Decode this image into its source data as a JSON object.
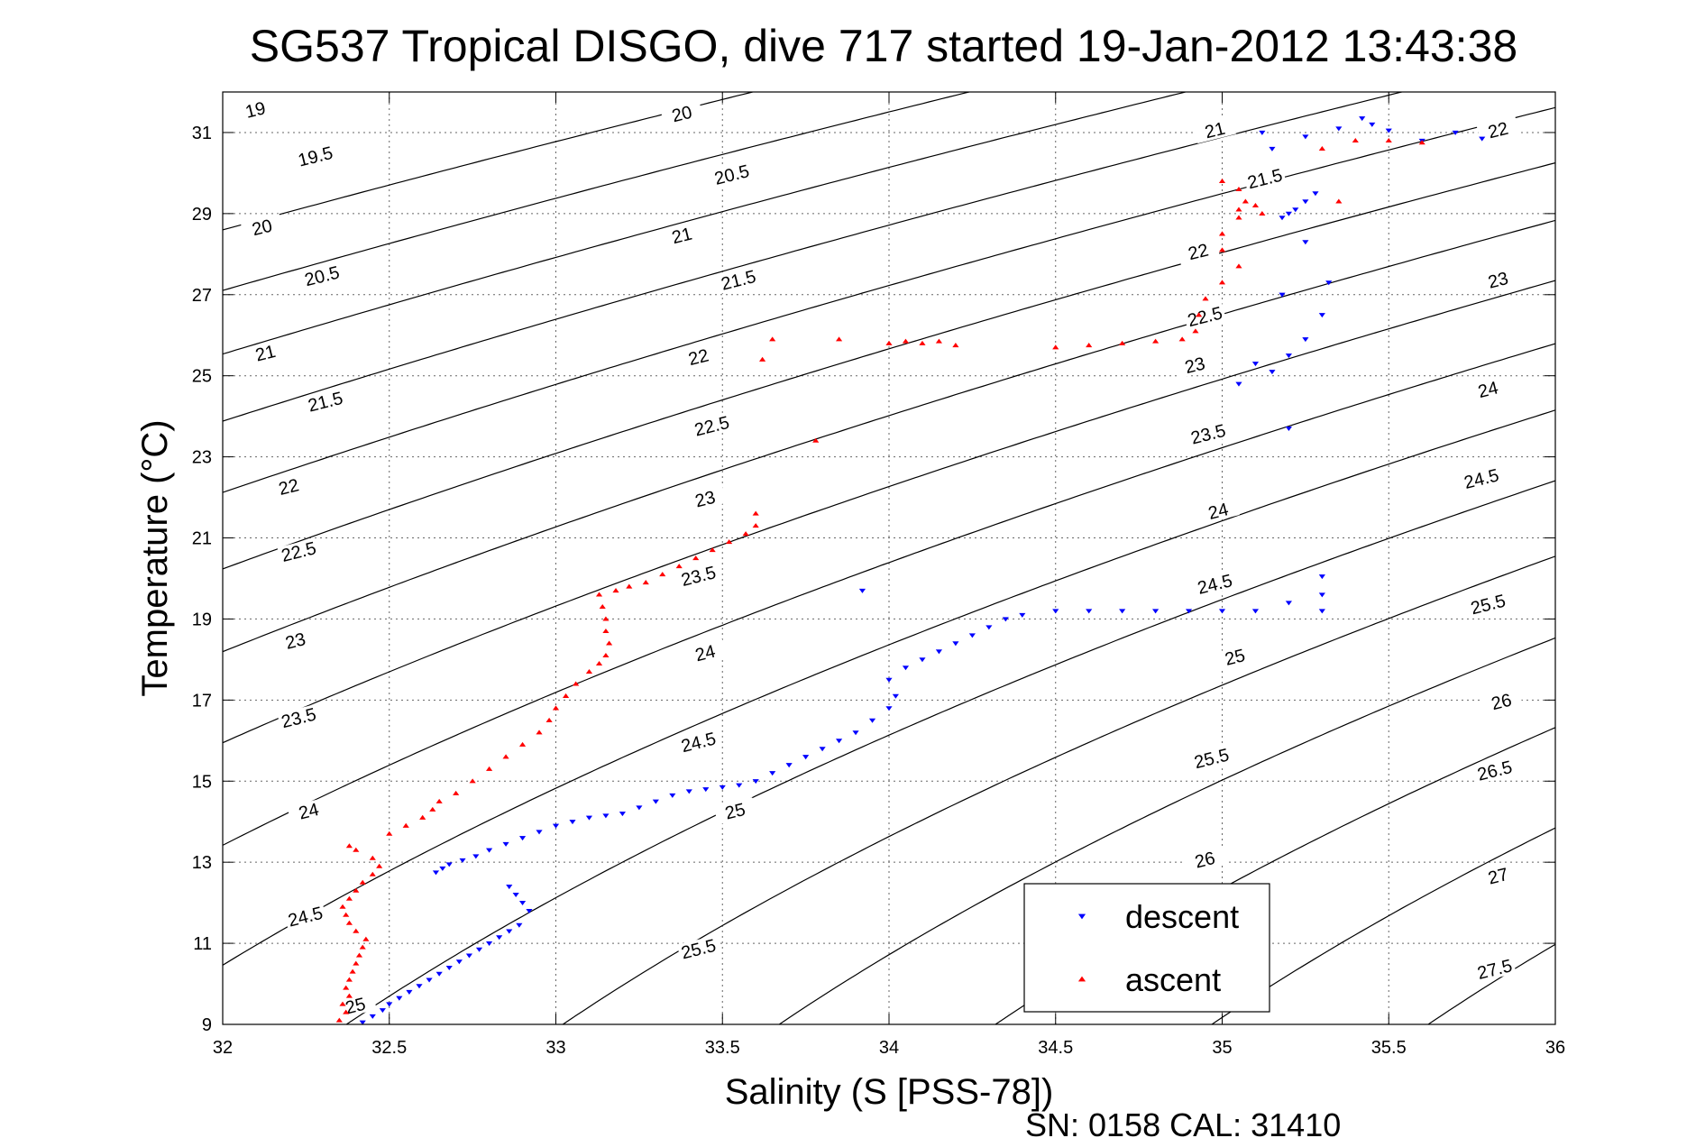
{
  "chart_data": {
    "type": "scatter",
    "title": "SG537 Tropical DISGO, dive 717 started 19-Jan-2012 13:43:38",
    "xlabel": "Salinity (S [PSS-78])",
    "ylabel": "Temperature (°C)",
    "xlim": [
      32,
      36
    ],
    "ylim": [
      9,
      32
    ],
    "xticks": [
      32,
      32.5,
      33,
      33.5,
      34,
      34.5,
      35,
      35.5,
      36
    ],
    "xtick_labels": [
      "32",
      "32.5",
      "33",
      "33.5",
      "34",
      "34.5",
      "35",
      "35.5",
      "36"
    ],
    "yticks": [
      9,
      11,
      13,
      15,
      17,
      19,
      21,
      23,
      25,
      27,
      29,
      31
    ],
    "ytick_labels": [
      "9",
      "11",
      "13",
      "15",
      "17",
      "19",
      "21",
      "23",
      "25",
      "27",
      "29",
      "31"
    ],
    "grid": true,
    "legend_position": "bottom-right",
    "footer": "SN: 0158  CAL: 31410",
    "isopycnals": {
      "levels": [
        19,
        19.5,
        20,
        20.5,
        21,
        21.5,
        22,
        22.5,
        23,
        23.5,
        24,
        24.5,
        25,
        25.5,
        26,
        26.5,
        27,
        27.5
      ],
      "labels": [
        {
          "text": "19",
          "s": 32.1,
          "t": 31.5
        },
        {
          "text": "19.5",
          "s": 32.28,
          "t": 30.35
        },
        {
          "text": "20",
          "s": 32.12,
          "t": 28.6
        },
        {
          "text": "20.5",
          "s": 32.3,
          "t": 27.4
        },
        {
          "text": "21",
          "s": 32.13,
          "t": 25.5
        },
        {
          "text": "21.5",
          "s": 32.31,
          "t": 24.3
        },
        {
          "text": "22",
          "s": 32.2,
          "t": 22.2
        },
        {
          "text": "22.5",
          "s": 32.23,
          "t": 20.6
        },
        {
          "text": "23",
          "s": 32.22,
          "t": 18.4
        },
        {
          "text": "23.5",
          "s": 32.23,
          "t": 16.5
        },
        {
          "text": "24",
          "s": 32.26,
          "t": 14.2
        },
        {
          "text": "24.5",
          "s": 32.25,
          "t": 11.6
        },
        {
          "text": "25",
          "s": 32.4,
          "t": 9.4
        },
        {
          "text": "20",
          "s": 33.38,
          "t": 31.4
        },
        {
          "text": "20.5",
          "s": 33.53,
          "t": 29.9
        },
        {
          "text": "21",
          "s": 33.38,
          "t": 28.4
        },
        {
          "text": "21.5",
          "s": 33.55,
          "t": 27.3
        },
        {
          "text": "22",
          "s": 33.43,
          "t": 25.4
        },
        {
          "text": "22.5",
          "s": 33.47,
          "t": 23.7
        },
        {
          "text": "23",
          "s": 33.45,
          "t": 21.9
        },
        {
          "text": "23.5",
          "s": 33.43,
          "t": 20.0
        },
        {
          "text": "24",
          "s": 33.45,
          "t": 18.1
        },
        {
          "text": "24.5",
          "s": 33.43,
          "t": 15.9
        },
        {
          "text": "25",
          "s": 33.54,
          "t": 14.2
        },
        {
          "text": "25.5",
          "s": 33.43,
          "t": 10.8
        },
        {
          "text": "21",
          "s": 34.98,
          "t": 31.0
        },
        {
          "text": "21.5",
          "s": 35.13,
          "t": 29.8
        },
        {
          "text": "22",
          "s": 34.93,
          "t": 28.0
        },
        {
          "text": "22.5",
          "s": 34.95,
          "t": 26.4
        },
        {
          "text": "23",
          "s": 34.92,
          "t": 25.2
        },
        {
          "text": "23.5",
          "s": 34.96,
          "t": 23.5
        },
        {
          "text": "24",
          "s": 34.99,
          "t": 21.6
        },
        {
          "text": "24.5",
          "s": 34.98,
          "t": 19.8
        },
        {
          "text": "25",
          "s": 35.04,
          "t": 18.0
        },
        {
          "text": "25.5",
          "s": 34.97,
          "t": 15.5
        },
        {
          "text": "26",
          "s": 34.95,
          "t": 13.0
        },
        {
          "text": "22",
          "s": 35.83,
          "t": 31.0
        },
        {
          "text": "23",
          "s": 35.83,
          "t": 27.3
        },
        {
          "text": "24",
          "s": 35.8,
          "t": 24.6
        },
        {
          "text": "24.5",
          "s": 35.78,
          "t": 22.4
        },
        {
          "text": "25.5",
          "s": 35.8,
          "t": 19.3
        },
        {
          "text": "26",
          "s": 35.84,
          "t": 16.9
        },
        {
          "text": "26.5",
          "s": 35.82,
          "t": 15.2
        },
        {
          "text": "27",
          "s": 35.83,
          "t": 12.6
        },
        {
          "text": "27.5",
          "s": 35.82,
          "t": 10.3
        }
      ]
    },
    "series": [
      {
        "name": "descent",
        "marker": "triangle-down",
        "color": "#0000ff",
        "points": [
          [
            32.42,
            9.05
          ],
          [
            32.45,
            9.2
          ],
          [
            32.48,
            9.35
          ],
          [
            32.5,
            9.5
          ],
          [
            32.53,
            9.65
          ],
          [
            32.56,
            9.8
          ],
          [
            32.59,
            9.95
          ],
          [
            32.62,
            10.1
          ],
          [
            32.65,
            10.25
          ],
          [
            32.68,
            10.4
          ],
          [
            32.71,
            10.55
          ],
          [
            32.74,
            10.7
          ],
          [
            32.77,
            10.85
          ],
          [
            32.8,
            11.0
          ],
          [
            32.83,
            11.15
          ],
          [
            32.86,
            11.3
          ],
          [
            32.89,
            11.45
          ],
          [
            32.92,
            11.8
          ],
          [
            32.9,
            12.0
          ],
          [
            32.88,
            12.2
          ],
          [
            32.86,
            12.4
          ],
          [
            32.64,
            12.75
          ],
          [
            32.66,
            12.85
          ],
          [
            32.68,
            12.95
          ],
          [
            32.72,
            13.05
          ],
          [
            32.76,
            13.15
          ],
          [
            32.8,
            13.3
          ],
          [
            32.85,
            13.45
          ],
          [
            32.9,
            13.6
          ],
          [
            32.95,
            13.75
          ],
          [
            33.0,
            13.9
          ],
          [
            33.05,
            14.0
          ],
          [
            33.1,
            14.1
          ],
          [
            33.15,
            14.15
          ],
          [
            33.2,
            14.2
          ],
          [
            33.25,
            14.35
          ],
          [
            33.3,
            14.5
          ],
          [
            33.35,
            14.65
          ],
          [
            33.4,
            14.75
          ],
          [
            33.45,
            14.8
          ],
          [
            33.5,
            14.85
          ],
          [
            33.55,
            14.9
          ],
          [
            33.6,
            15.0
          ],
          [
            33.65,
            15.2
          ],
          [
            33.7,
            15.4
          ],
          [
            33.75,
            15.6
          ],
          [
            33.8,
            15.8
          ],
          [
            33.85,
            16.0
          ],
          [
            33.9,
            16.2
          ],
          [
            33.95,
            16.5
          ],
          [
            34.0,
            16.8
          ],
          [
            34.02,
            17.1
          ],
          [
            34.0,
            17.5
          ],
          [
            34.05,
            17.8
          ],
          [
            34.1,
            18.0
          ],
          [
            34.15,
            18.2
          ],
          [
            34.2,
            18.4
          ],
          [
            34.25,
            18.6
          ],
          [
            34.3,
            18.8
          ],
          [
            34.35,
            19.0
          ],
          [
            34.4,
            19.1
          ],
          [
            34.5,
            19.2
          ],
          [
            34.6,
            19.2
          ],
          [
            34.7,
            19.2
          ],
          [
            34.8,
            19.2
          ],
          [
            34.9,
            19.2
          ],
          [
            35.0,
            19.2
          ],
          [
            35.1,
            19.2
          ],
          [
            35.2,
            19.4
          ],
          [
            35.3,
            19.6
          ],
          [
            35.3,
            20.05
          ],
          [
            35.3,
            19.2
          ],
          [
            33.92,
            19.7
          ],
          [
            35.05,
            24.8
          ],
          [
            35.15,
            25.1
          ],
          [
            35.2,
            25.5
          ],
          [
            35.25,
            25.9
          ],
          [
            35.3,
            26.5
          ],
          [
            35.2,
            23.7
          ],
          [
            35.1,
            25.3
          ],
          [
            35.18,
            27.0
          ],
          [
            35.32,
            27.3
          ],
          [
            35.25,
            28.3
          ],
          [
            35.18,
            28.9
          ],
          [
            35.2,
            29.0
          ],
          [
            35.22,
            29.1
          ],
          [
            35.25,
            29.3
          ],
          [
            35.28,
            29.5
          ],
          [
            35.15,
            30.6
          ],
          [
            35.25,
            30.9
          ],
          [
            35.35,
            31.1
          ],
          [
            35.42,
            31.35
          ],
          [
            35.45,
            31.2
          ],
          [
            35.5,
            31.05
          ],
          [
            35.6,
            30.8
          ],
          [
            35.7,
            31.0
          ],
          [
            35.78,
            30.85
          ],
          [
            35.12,
            31.0
          ]
        ]
      },
      {
        "name": "ascent",
        "marker": "triangle-up",
        "color": "#ff0000",
        "points": [
          [
            32.35,
            9.1
          ],
          [
            32.37,
            9.3
          ],
          [
            32.36,
            9.5
          ],
          [
            32.38,
            9.7
          ],
          [
            32.37,
            9.9
          ],
          [
            32.38,
            10.1
          ],
          [
            32.39,
            10.3
          ],
          [
            32.4,
            10.5
          ],
          [
            32.41,
            10.7
          ],
          [
            32.42,
            10.9
          ],
          [
            32.43,
            11.1
          ],
          [
            32.4,
            11.3
          ],
          [
            32.38,
            11.5
          ],
          [
            32.37,
            11.7
          ],
          [
            32.36,
            11.9
          ],
          [
            32.38,
            12.1
          ],
          [
            32.4,
            12.3
          ],
          [
            32.42,
            12.5
          ],
          [
            32.45,
            12.7
          ],
          [
            32.47,
            12.9
          ],
          [
            32.45,
            13.1
          ],
          [
            32.4,
            13.3
          ],
          [
            32.38,
            13.4
          ],
          [
            32.5,
            13.7
          ],
          [
            32.55,
            13.9
          ],
          [
            32.6,
            14.1
          ],
          [
            32.63,
            14.3
          ],
          [
            32.65,
            14.5
          ],
          [
            32.7,
            14.7
          ],
          [
            32.75,
            15.0
          ],
          [
            32.8,
            15.3
          ],
          [
            32.85,
            15.6
          ],
          [
            32.9,
            15.9
          ],
          [
            32.95,
            16.2
          ],
          [
            32.98,
            16.5
          ],
          [
            33.0,
            16.8
          ],
          [
            33.03,
            17.1
          ],
          [
            33.06,
            17.4
          ],
          [
            33.1,
            17.7
          ],
          [
            33.13,
            17.9
          ],
          [
            33.15,
            18.1
          ],
          [
            33.16,
            18.4
          ],
          [
            33.15,
            18.7
          ],
          [
            33.15,
            19.0
          ],
          [
            33.14,
            19.3
          ],
          [
            33.13,
            19.6
          ],
          [
            33.18,
            19.7
          ],
          [
            33.22,
            19.8
          ],
          [
            33.27,
            19.9
          ],
          [
            33.32,
            20.1
          ],
          [
            33.37,
            20.3
          ],
          [
            33.42,
            20.5
          ],
          [
            33.47,
            20.7
          ],
          [
            33.52,
            20.9
          ],
          [
            33.57,
            21.1
          ],
          [
            33.6,
            21.3
          ],
          [
            33.6,
            21.6
          ],
          [
            33.62,
            25.4
          ],
          [
            33.65,
            25.9
          ],
          [
            33.78,
            23.4
          ],
          [
            33.85,
            25.9
          ],
          [
            34.0,
            25.8
          ],
          [
            34.05,
            25.85
          ],
          [
            34.1,
            25.8
          ],
          [
            34.15,
            25.85
          ],
          [
            34.2,
            25.75
          ],
          [
            34.5,
            25.7
          ],
          [
            34.6,
            25.75
          ],
          [
            34.7,
            25.8
          ],
          [
            34.8,
            25.85
          ],
          [
            34.88,
            25.9
          ],
          [
            34.92,
            26.1
          ],
          [
            34.93,
            26.5
          ],
          [
            34.95,
            26.9
          ],
          [
            35.0,
            27.3
          ],
          [
            35.05,
            27.7
          ],
          [
            35.0,
            28.1
          ],
          [
            35.0,
            28.5
          ],
          [
            35.05,
            28.9
          ],
          [
            35.05,
            29.1
          ],
          [
            35.07,
            29.3
          ],
          [
            35.05,
            29.6
          ],
          [
            35.0,
            29.8
          ],
          [
            35.1,
            29.2
          ],
          [
            35.12,
            29.0
          ],
          [
            35.35,
            29.3
          ],
          [
            35.3,
            30.6
          ],
          [
            35.4,
            30.8
          ],
          [
            35.5,
            30.8
          ],
          [
            35.6,
            30.75
          ]
        ]
      }
    ]
  },
  "legend": [
    {
      "label": "descent",
      "color": "#0000ff",
      "marker": "triangle-down"
    },
    {
      "label": "ascent",
      "color": "#ff0000",
      "marker": "triangle-up"
    }
  ]
}
